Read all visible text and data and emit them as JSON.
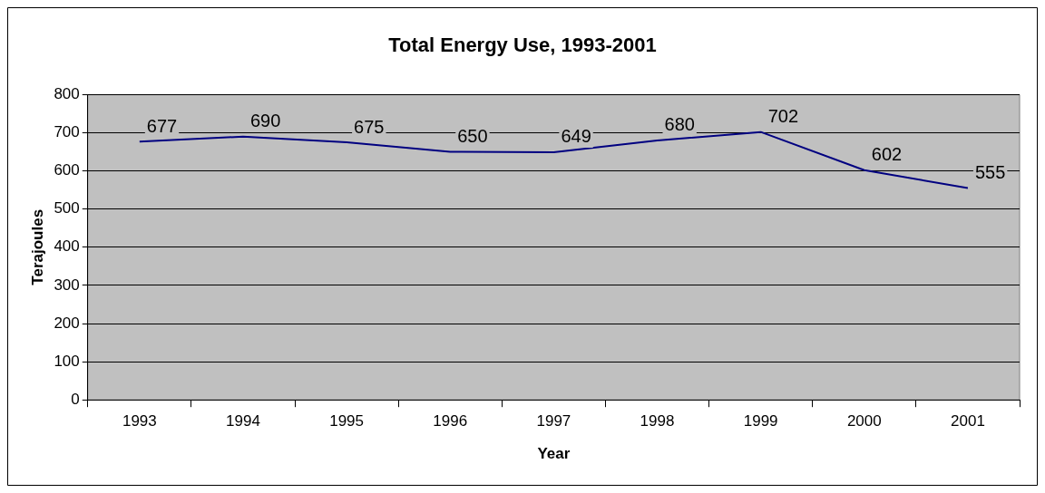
{
  "chart_data": {
    "type": "line",
    "title": "Total Energy Use, 1993-2001",
    "xlabel": "Year",
    "ylabel": "Terajoules",
    "categories": [
      "1993",
      "1994",
      "1995",
      "1996",
      "1997",
      "1998",
      "1999",
      "2000",
      "2001"
    ],
    "series": [
      {
        "color": "#000080",
        "values": [
          677,
          690,
          675,
          650,
          649,
          680,
          702,
          602,
          555
        ]
      }
    ],
    "ylim": [
      0,
      800
    ],
    "yticks": [
      0,
      100,
      200,
      300,
      400,
      500,
      600,
      700,
      800
    ],
    "grid": "y",
    "legend": false,
    "marker": "none",
    "line_style": "solid",
    "data_labels": true
  }
}
